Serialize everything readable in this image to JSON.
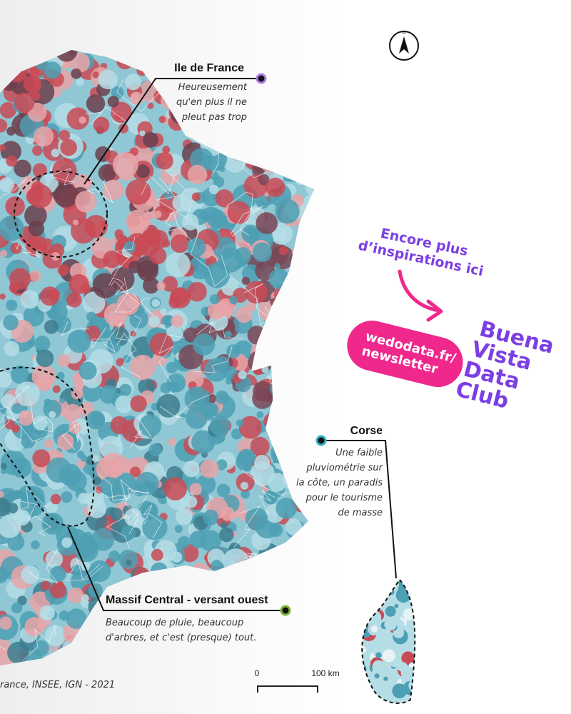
{
  "compass": "N",
  "annotations": [
    {
      "title": "Ile de France",
      "lines": [
        "Heureusement",
        "qu'en plus il ne",
        "pleut pas trop"
      ]
    },
    {
      "title": "Corse",
      "lines": [
        "Une faible",
        "pluviométrie sur",
        "la côte, un paradis",
        "pour le tourisme",
        "de masse"
      ]
    },
    {
      "title": "Massif Central - versant ouest",
      "lines": [
        "Beaucoup de pluie, beaucoup",
        "d'arbres, et c'est (presque) tout."
      ]
    }
  ],
  "source": "rance, INSEE, IGN - 2021",
  "scale": {
    "start": "0",
    "end": "100 km"
  },
  "promo": {
    "invite": [
      "Encore plus",
      "d’inspirations ici"
    ],
    "link": [
      "wedodata.fr/",
      "newsletter"
    ],
    "brand": [
      "Buena",
      "Vista",
      "Data",
      "Club"
    ]
  }
}
